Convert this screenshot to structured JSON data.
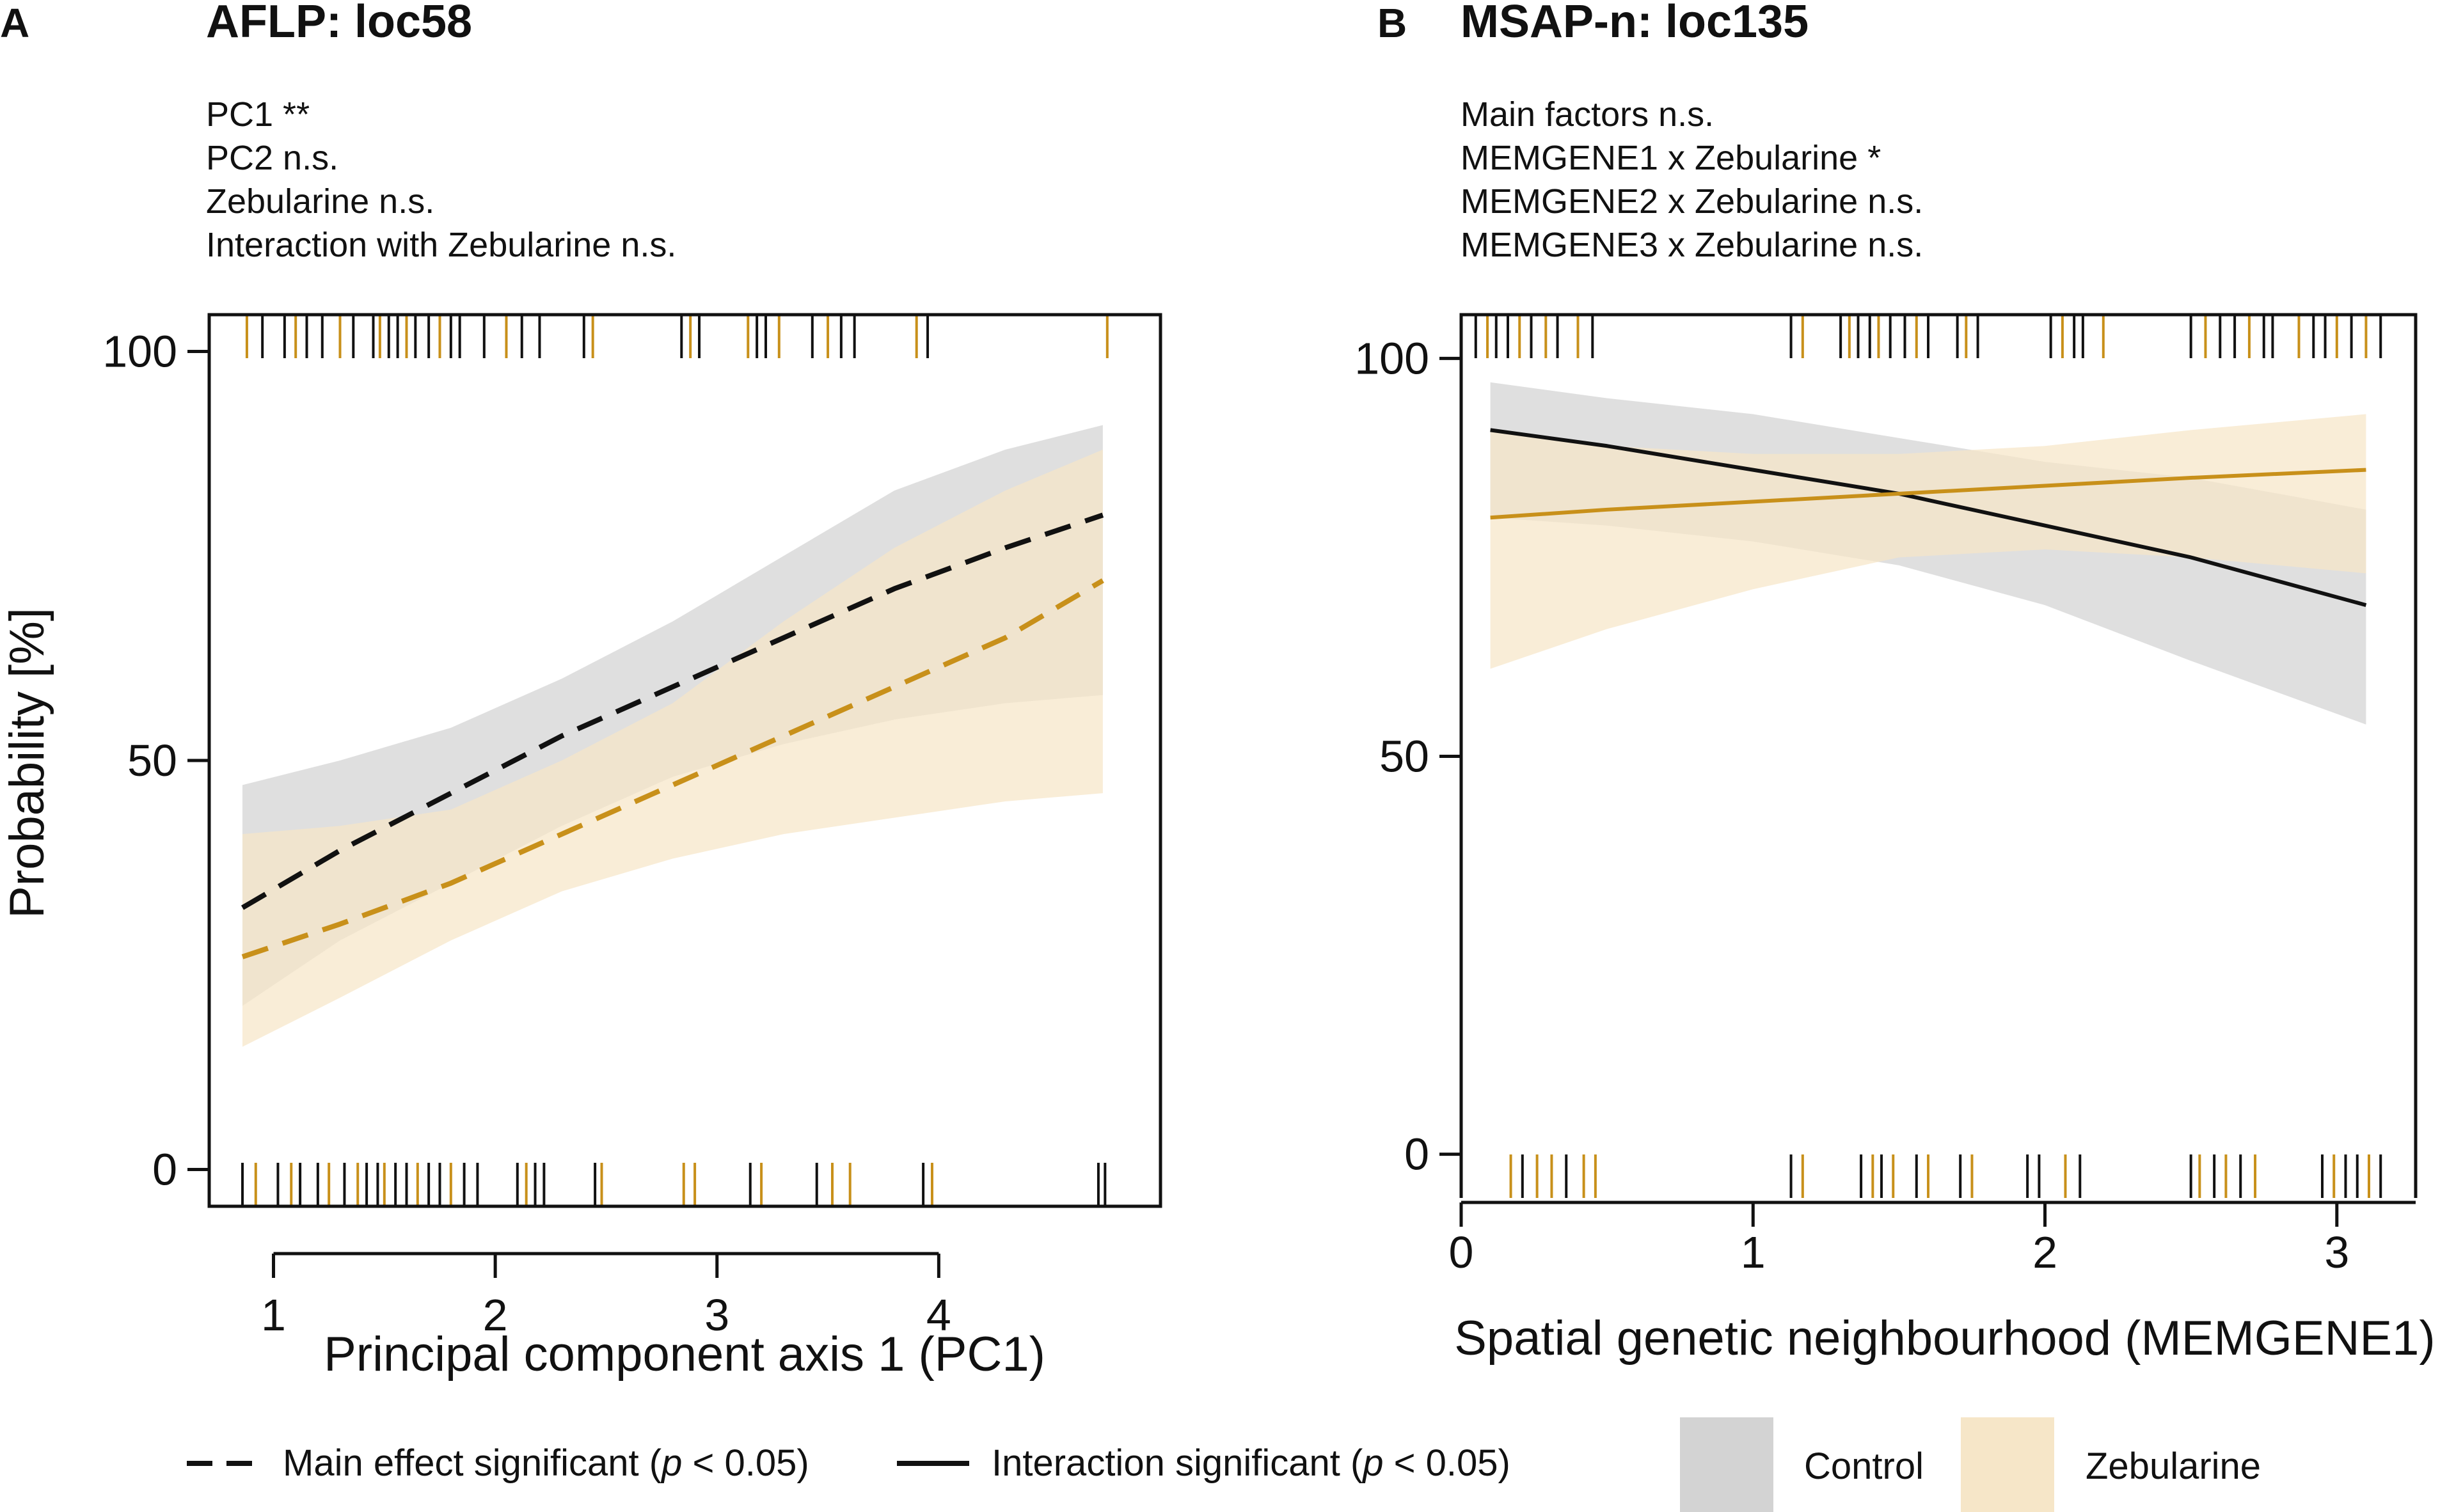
{
  "chart_data": [
    {
      "panel": "A",
      "type": "line",
      "title": "AFLP: loc58",
      "annotations": [
        "PC1 **",
        "PC2 n.s.",
        "Zebularine n.s.",
        "Interaction with Zebularine n.s."
      ],
      "xlabel": "Principal component axis 1 (PC1)",
      "ylabel": "Probability [%]",
      "xlim": [
        0.71,
        5.0
      ],
      "ylim": [
        -4.5,
        104.5
      ],
      "xticks": [
        "1",
        "2",
        "3",
        "4"
      ],
      "yticks": [
        "0",
        "50",
        "100"
      ],
      "line_style": "dashed",
      "series": [
        {
          "name": "Control",
          "color": "#111111",
          "band_color": "#d3d3d3",
          "x": [
            0.86,
            1.3,
            1.8,
            2.3,
            2.8,
            3.3,
            3.8,
            4.3,
            4.74
          ],
          "values": [
            32,
            39,
            46,
            53,
            59,
            65,
            71,
            76,
            80
          ],
          "lower": [
            20,
            28,
            35,
            42,
            48,
            52,
            55,
            57,
            58
          ],
          "upper": [
            47,
            50,
            54,
            60,
            67,
            75,
            83,
            88,
            91
          ]
        },
        {
          "name": "Zebularine",
          "color": "#c8901a",
          "band_color": "#f6e6c8",
          "x": [
            0.86,
            1.3,
            1.8,
            2.3,
            2.8,
            3.3,
            3.8,
            4.3,
            4.74
          ],
          "values": [
            26,
            30,
            35,
            41,
            47,
            53,
            59,
            65,
            72
          ],
          "lower": [
            15,
            21,
            28,
            34,
            38,
            41,
            43,
            45,
            46
          ],
          "upper": [
            41,
            42,
            44,
            50,
            57,
            67,
            76,
            83,
            88
          ]
        }
      ],
      "rug_top": [
        {
          "x": 0.88,
          "group": "Zebularine"
        },
        {
          "x": 0.95,
          "group": "Control"
        },
        {
          "x": 1.05,
          "group": "Control"
        },
        {
          "x": 1.1,
          "group": "Zebularine"
        },
        {
          "x": 1.15,
          "group": "Control"
        },
        {
          "x": 1.22,
          "group": "Control"
        },
        {
          "x": 1.3,
          "group": "Zebularine"
        },
        {
          "x": 1.36,
          "group": "Control"
        },
        {
          "x": 1.45,
          "group": "Control"
        },
        {
          "x": 1.48,
          "group": "Zebularine"
        },
        {
          "x": 1.52,
          "group": "Control"
        },
        {
          "x": 1.56,
          "group": "Control"
        },
        {
          "x": 1.6,
          "group": "Zebularine"
        },
        {
          "x": 1.64,
          "group": "Control"
        },
        {
          "x": 1.7,
          "group": "Control"
        },
        {
          "x": 1.75,
          "group": "Zebularine"
        },
        {
          "x": 1.8,
          "group": "Control"
        },
        {
          "x": 1.84,
          "group": "Control"
        },
        {
          "x": 1.95,
          "group": "Control"
        },
        {
          "x": 2.05,
          "group": "Zebularine"
        },
        {
          "x": 2.12,
          "group": "Control"
        },
        {
          "x": 2.2,
          "group": "Control"
        },
        {
          "x": 2.4,
          "group": "Control"
        },
        {
          "x": 2.44,
          "group": "Zebularine"
        },
        {
          "x": 2.84,
          "group": "Control"
        },
        {
          "x": 2.88,
          "group": "Zebularine"
        },
        {
          "x": 2.92,
          "group": "Control"
        },
        {
          "x": 3.14,
          "group": "Zebularine"
        },
        {
          "x": 3.18,
          "group": "Control"
        },
        {
          "x": 3.22,
          "group": "Control"
        },
        {
          "x": 3.28,
          "group": "Zebularine"
        },
        {
          "x": 3.43,
          "group": "Control"
        },
        {
          "x": 3.5,
          "group": "Zebularine"
        },
        {
          "x": 3.56,
          "group": "Control"
        },
        {
          "x": 3.62,
          "group": "Control"
        },
        {
          "x": 3.9,
          "group": "Zebularine"
        },
        {
          "x": 3.95,
          "group": "Control"
        },
        {
          "x": 4.76,
          "group": "Zebularine"
        }
      ],
      "rug_bottom": [
        {
          "x": 0.86,
          "group": "Control"
        },
        {
          "x": 0.92,
          "group": "Zebularine"
        },
        {
          "x": 1.02,
          "group": "Control"
        },
        {
          "x": 1.08,
          "group": "Zebularine"
        },
        {
          "x": 1.12,
          "group": "Control"
        },
        {
          "x": 1.2,
          "group": "Control"
        },
        {
          "x": 1.25,
          "group": "Zebularine"
        },
        {
          "x": 1.32,
          "group": "Control"
        },
        {
          "x": 1.38,
          "group": "Zebularine"
        },
        {
          "x": 1.42,
          "group": "Control"
        },
        {
          "x": 1.47,
          "group": "Control"
        },
        {
          "x": 1.5,
          "group": "Zebularine"
        },
        {
          "x": 1.55,
          "group": "Control"
        },
        {
          "x": 1.6,
          "group": "Control"
        },
        {
          "x": 1.65,
          "group": "Zebularine"
        },
        {
          "x": 1.7,
          "group": "Control"
        },
        {
          "x": 1.75,
          "group": "Control"
        },
        {
          "x": 1.8,
          "group": "Zebularine"
        },
        {
          "x": 1.86,
          "group": "Control"
        },
        {
          "x": 1.92,
          "group": "Control"
        },
        {
          "x": 2.1,
          "group": "Control"
        },
        {
          "x": 2.14,
          "group": "Zebularine"
        },
        {
          "x": 2.18,
          "group": "Control"
        },
        {
          "x": 2.22,
          "group": "Control"
        },
        {
          "x": 2.45,
          "group": "Control"
        },
        {
          "x": 2.48,
          "group": "Zebularine"
        },
        {
          "x": 2.85,
          "group": "Zebularine"
        },
        {
          "x": 2.9,
          "group": "Zebularine"
        },
        {
          "x": 3.15,
          "group": "Control"
        },
        {
          "x": 3.2,
          "group": "Zebularine"
        },
        {
          "x": 3.45,
          "group": "Control"
        },
        {
          "x": 3.52,
          "group": "Zebularine"
        },
        {
          "x": 3.6,
          "group": "Zebularine"
        },
        {
          "x": 3.93,
          "group": "Control"
        },
        {
          "x": 3.97,
          "group": "Zebularine"
        },
        {
          "x": 4.72,
          "group": "Control"
        },
        {
          "x": 4.75,
          "group": "Control"
        }
      ]
    },
    {
      "panel": "B",
      "type": "line",
      "title": "MSAP-n: loc135",
      "annotations": [
        "Main factors n.s.",
        "MEMGENE1 x Zebularine *",
        "MEMGENE2 x Zebularine n.s.",
        "MEMGENE3 x Zebularine n.s."
      ],
      "xlabel": "Spatial genetic neighbourhood (MEMGENE1)",
      "ylabel": "",
      "xlim": [
        0,
        3.27
      ],
      "ylim": [
        -5.5,
        105.5
      ],
      "xticks": [
        "0",
        "1",
        "2",
        "3"
      ],
      "yticks": [
        "0",
        "50",
        "100"
      ],
      "line_style": "solid",
      "series": [
        {
          "name": "Control",
          "color": "#111111",
          "band_color": "#d3d3d3",
          "x": [
            0.1,
            0.5,
            1.0,
            1.5,
            2.0,
            2.5,
            3.1
          ],
          "values": [
            91,
            89,
            86,
            83,
            79,
            75,
            69
          ],
          "lower": [
            80,
            79,
            77,
            74,
            69,
            62,
            54
          ],
          "upper": [
            97,
            95,
            93,
            90,
            87,
            85,
            81
          ]
        },
        {
          "name": "Zebularine",
          "color": "#c8901a",
          "band_color": "#f6e6c8",
          "x": [
            0.1,
            0.5,
            1.0,
            1.5,
            2.0,
            2.5,
            3.1
          ],
          "values": [
            80,
            81,
            82,
            83,
            84,
            85,
            86
          ],
          "lower": [
            61,
            66,
            71,
            75,
            76,
            75,
            73
          ],
          "upper": [
            91,
            89,
            88,
            88,
            89,
            91,
            93
          ]
        }
      ],
      "rug_top": [
        {
          "x": 0.05,
          "group": "Control"
        },
        {
          "x": 0.09,
          "group": "Zebularine"
        },
        {
          "x": 0.12,
          "group": "Control"
        },
        {
          "x": 0.16,
          "group": "Control"
        },
        {
          "x": 0.2,
          "group": "Zebularine"
        },
        {
          "x": 0.24,
          "group": "Control"
        },
        {
          "x": 0.29,
          "group": "Zebularine"
        },
        {
          "x": 0.33,
          "group": "Control"
        },
        {
          "x": 0.4,
          "group": "Zebularine"
        },
        {
          "x": 0.45,
          "group": "Control"
        },
        {
          "x": 1.13,
          "group": "Control"
        },
        {
          "x": 1.17,
          "group": "Zebularine"
        },
        {
          "x": 1.3,
          "group": "Control"
        },
        {
          "x": 1.33,
          "group": "Zebularine"
        },
        {
          "x": 1.36,
          "group": "Control"
        },
        {
          "x": 1.4,
          "group": "Control"
        },
        {
          "x": 1.43,
          "group": "Zebularine"
        },
        {
          "x": 1.47,
          "group": "Control"
        },
        {
          "x": 1.52,
          "group": "Control"
        },
        {
          "x": 1.56,
          "group": "Zebularine"
        },
        {
          "x": 1.6,
          "group": "Control"
        },
        {
          "x": 1.7,
          "group": "Control"
        },
        {
          "x": 1.73,
          "group": "Zebularine"
        },
        {
          "x": 1.77,
          "group": "Control"
        },
        {
          "x": 2.02,
          "group": "Control"
        },
        {
          "x": 2.06,
          "group": "Zebularine"
        },
        {
          "x": 2.1,
          "group": "Control"
        },
        {
          "x": 2.13,
          "group": "Control"
        },
        {
          "x": 2.2,
          "group": "Zebularine"
        },
        {
          "x": 2.5,
          "group": "Control"
        },
        {
          "x": 2.55,
          "group": "Zebularine"
        },
        {
          "x": 2.6,
          "group": "Control"
        },
        {
          "x": 2.65,
          "group": "Control"
        },
        {
          "x": 2.7,
          "group": "Zebularine"
        },
        {
          "x": 2.75,
          "group": "Control"
        },
        {
          "x": 2.78,
          "group": "Control"
        },
        {
          "x": 2.87,
          "group": "Zebularine"
        },
        {
          "x": 2.92,
          "group": "Control"
        },
        {
          "x": 2.96,
          "group": "Control"
        },
        {
          "x": 3.0,
          "group": "Zebularine"
        },
        {
          "x": 3.05,
          "group": "Control"
        },
        {
          "x": 3.1,
          "group": "Zebularine"
        },
        {
          "x": 3.15,
          "group": "Control"
        }
      ],
      "rug_bottom": [
        {
          "x": 0.17,
          "group": "Zebularine"
        },
        {
          "x": 0.21,
          "group": "Control"
        },
        {
          "x": 0.26,
          "group": "Zebularine"
        },
        {
          "x": 0.31,
          "group": "Zebularine"
        },
        {
          "x": 0.36,
          "group": "Control"
        },
        {
          "x": 0.42,
          "group": "Zebularine"
        },
        {
          "x": 0.46,
          "group": "Zebularine"
        },
        {
          "x": 1.13,
          "group": "Control"
        },
        {
          "x": 1.17,
          "group": "Zebularine"
        },
        {
          "x": 1.37,
          "group": "Control"
        },
        {
          "x": 1.41,
          "group": "Zebularine"
        },
        {
          "x": 1.44,
          "group": "Control"
        },
        {
          "x": 1.48,
          "group": "Zebularine"
        },
        {
          "x": 1.56,
          "group": "Control"
        },
        {
          "x": 1.6,
          "group": "Zebularine"
        },
        {
          "x": 1.71,
          "group": "Control"
        },
        {
          "x": 1.75,
          "group": "Zebularine"
        },
        {
          "x": 1.94,
          "group": "Control"
        },
        {
          "x": 1.98,
          "group": "Control"
        },
        {
          "x": 2.07,
          "group": "Zebularine"
        },
        {
          "x": 2.12,
          "group": "Control"
        },
        {
          "x": 2.5,
          "group": "Control"
        },
        {
          "x": 2.53,
          "group": "Zebularine"
        },
        {
          "x": 2.58,
          "group": "Control"
        },
        {
          "x": 2.62,
          "group": "Zebularine"
        },
        {
          "x": 2.67,
          "group": "Control"
        },
        {
          "x": 2.72,
          "group": "Zebularine"
        },
        {
          "x": 2.95,
          "group": "Control"
        },
        {
          "x": 2.99,
          "group": "Zebularine"
        },
        {
          "x": 3.03,
          "group": "Control"
        },
        {
          "x": 3.07,
          "group": "Control"
        },
        {
          "x": 3.11,
          "group": "Zebularine"
        },
        {
          "x": 3.15,
          "group": "Control"
        }
      ]
    }
  ],
  "legend": {
    "dashed_label": "Main effect significant (",
    "solid_label": "Interaction significant (",
    "p_symbol": "p",
    "p_suffix": " < 0.05)",
    "groups": [
      {
        "label": "Control",
        "color": "#d3d3d3"
      },
      {
        "label": "Zebularine",
        "color": "#f6e6c8"
      }
    ]
  },
  "colors": {
    "control_line": "#111111",
    "zebularine_line": "#c8901a",
    "control_band": "#d3d3d3",
    "zebularine_band": "#f6e6c8"
  }
}
